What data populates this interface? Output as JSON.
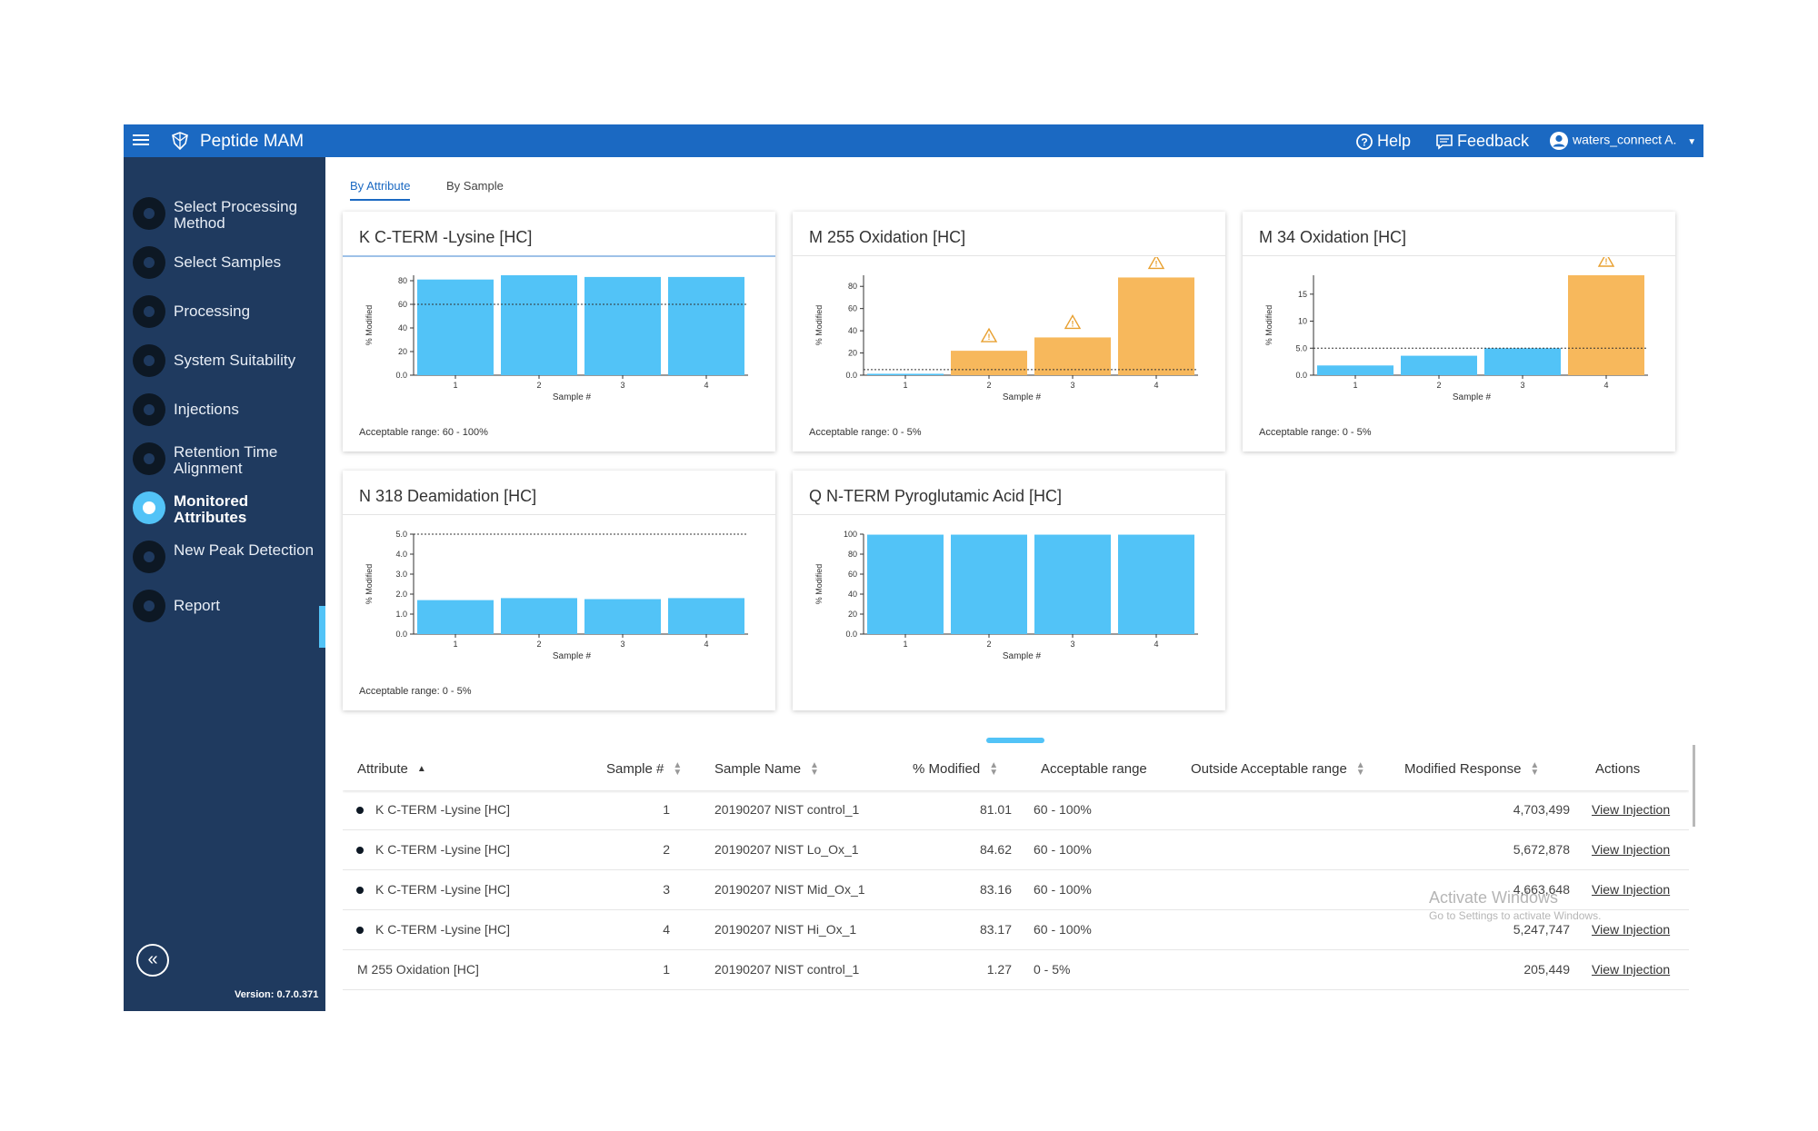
{
  "app": {
    "title": "Peptide MAM"
  },
  "header": {
    "help": "Help",
    "feedback": "Feedback",
    "user": "waters_connect A."
  },
  "sidebar": {
    "items": [
      {
        "label": "Select Processing Method",
        "active": false
      },
      {
        "label": "Select Samples",
        "active": false
      },
      {
        "label": "Processing",
        "active": false
      },
      {
        "label": "System Suitability",
        "active": false
      },
      {
        "label": "Injections",
        "active": false
      },
      {
        "label": "Retention Time Alignment",
        "active": false
      },
      {
        "label": "Monitored Attributes",
        "active": true
      },
      {
        "label": "New Peak Detection",
        "active": false
      },
      {
        "label": "Report",
        "active": false
      }
    ],
    "version": "Version: 0.7.0.371"
  },
  "tabs": [
    "By Attribute",
    "By Sample"
  ],
  "chart_data": [
    {
      "type": "bar",
      "title": "K C-TERM -Lysine [HC]",
      "ylabel": "% Modified",
      "xlabel": "Sample #",
      "categories": [
        "1",
        "2",
        "3",
        "4"
      ],
      "values": [
        81.01,
        84.62,
        83.16,
        83.17
      ],
      "ylim": [
        0,
        84.62
      ],
      "yticks": [
        "0.0",
        "20",
        "40",
        "60",
        "80"
      ],
      "threshold": 60,
      "bar_colors": [
        "#52c3f7",
        "#52c3f7",
        "#52c3f7",
        "#52c3f7"
      ],
      "warnings": [
        false,
        false,
        false,
        false
      ],
      "range_text": "Acceptable range: 60 - 100%"
    },
    {
      "type": "bar",
      "title": "M 255 Oxidation [HC]",
      "ylabel": "% Modified",
      "xlabel": "Sample #",
      "categories": [
        "1",
        "2",
        "3",
        "4"
      ],
      "values": [
        1.27,
        22,
        34,
        88
      ],
      "ylim": [
        0,
        90
      ],
      "yticks": [
        "0.0",
        "20",
        "40",
        "60",
        "80"
      ],
      "threshold": 5,
      "bar_colors": [
        "#52c3f7",
        "#f7b85c",
        "#f7b85c",
        "#f7b85c"
      ],
      "warnings": [
        false,
        true,
        true,
        true
      ],
      "range_text": "Acceptable range: 0 - 5%"
    },
    {
      "type": "bar",
      "title": "M 34 Oxidation [HC]",
      "ylabel": "% Modified",
      "xlabel": "Sample #",
      "categories": [
        "1",
        "2",
        "3",
        "4"
      ],
      "values": [
        1.8,
        3.6,
        5.0,
        18.5
      ],
      "ylim": [
        0,
        18.5
      ],
      "yticks": [
        "0.0",
        "5.0",
        "10",
        "15"
      ],
      "threshold": 5,
      "bar_colors": [
        "#52c3f7",
        "#52c3f7",
        "#52c3f7",
        "#f7b85c"
      ],
      "warnings": [
        false,
        false,
        false,
        true
      ],
      "range_text": "Acceptable range: 0 - 5%"
    },
    {
      "type": "bar",
      "title": "N 318 Deamidation [HC]",
      "ylabel": "% Modified",
      "xlabel": "Sample #",
      "categories": [
        "1",
        "2",
        "3",
        "4"
      ],
      "values": [
        1.7,
        1.8,
        1.75,
        1.8
      ],
      "ylim": [
        0,
        5
      ],
      "yticks": [
        "0.0",
        "1.0",
        "2.0",
        "3.0",
        "4.0",
        "5.0"
      ],
      "threshold": 5,
      "bar_colors": [
        "#52c3f7",
        "#52c3f7",
        "#52c3f7",
        "#52c3f7"
      ],
      "warnings": [
        false,
        false,
        false,
        false
      ],
      "range_text": "Acceptable range: 0 - 5%"
    },
    {
      "type": "bar",
      "title": "Q N-TERM Pyroglutamic Acid [HC]",
      "ylabel": "% Modified",
      "xlabel": "Sample #",
      "categories": [
        "1",
        "2",
        "3",
        "4"
      ],
      "values": [
        99.5,
        99.5,
        99.5,
        99.5
      ],
      "ylim": [
        0,
        100
      ],
      "yticks": [
        "0.0",
        "20",
        "40",
        "60",
        "80",
        "100"
      ],
      "threshold": null,
      "bar_colors": [
        "#52c3f7",
        "#52c3f7",
        "#52c3f7",
        "#52c3f7"
      ],
      "warnings": [
        false,
        false,
        false,
        false
      ],
      "range_text": ""
    }
  ],
  "table": {
    "columns": [
      "Attribute",
      "Sample #",
      "Sample Name",
      "% Modified",
      "Acceptable range",
      "Outside Acceptable range",
      "Modified Response",
      "Actions"
    ],
    "rows": [
      {
        "attribute": "K C-TERM -Lysine [HC]",
        "sample": "1",
        "name": "20190207 NIST control_1",
        "modified": "81.01",
        "range": "60 - 100%",
        "response": "4,703,499",
        "action": "View Injection",
        "bullet": true
      },
      {
        "attribute": "K C-TERM -Lysine [HC]",
        "sample": "2",
        "name": "20190207 NIST Lo_Ox_1",
        "modified": "84.62",
        "range": "60 - 100%",
        "response": "5,672,878",
        "action": "View Injection",
        "bullet": true
      },
      {
        "attribute": "K C-TERM -Lysine [HC]",
        "sample": "3",
        "name": "20190207 NIST Mid_Ox_1",
        "modified": "83.16",
        "range": "60 - 100%",
        "response": "4,663,648",
        "action": "View Injection",
        "bullet": true
      },
      {
        "attribute": "K C-TERM -Lysine [HC]",
        "sample": "4",
        "name": "20190207 NIST Hi_Ox_1",
        "modified": "83.17",
        "range": "60 - 100%",
        "response": "5,247,747",
        "action": "View Injection",
        "bullet": true
      },
      {
        "attribute": "M 255 Oxidation [HC]",
        "sample": "1",
        "name": "20190207 NIST control_1",
        "modified": "1.27",
        "range": "0 - 5%",
        "response": "205,449",
        "action": "View Injection",
        "bullet": false
      }
    ]
  },
  "watermark": {
    "title": "Activate Windows",
    "subtitle": "Go to Settings to activate Windows."
  }
}
